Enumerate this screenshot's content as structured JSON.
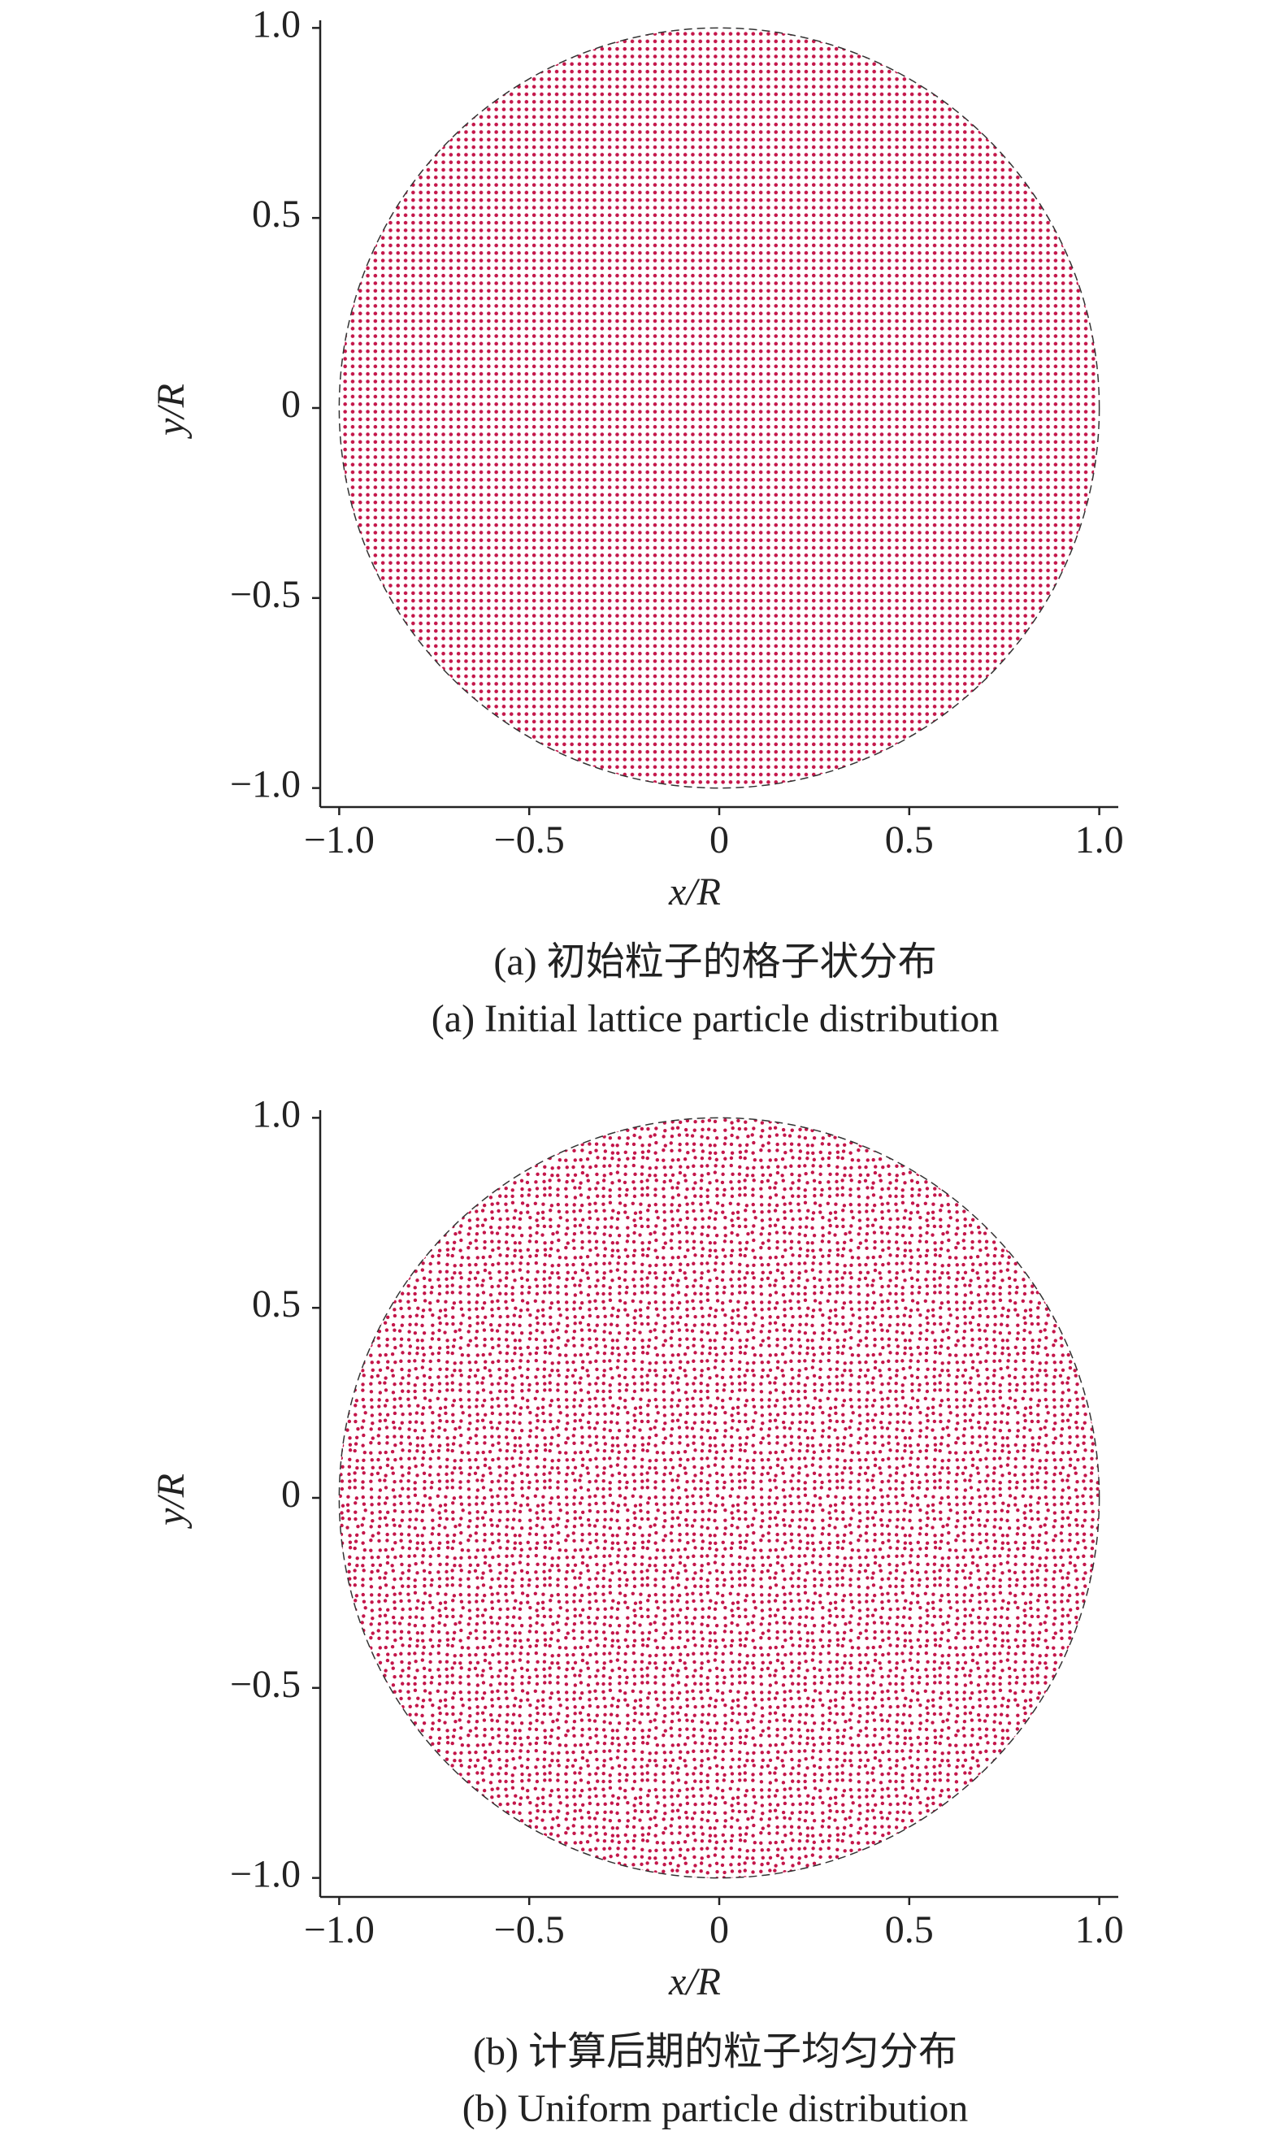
{
  "chart_data": [
    {
      "type": "scatter",
      "xlabel": "x/R",
      "ylabel": "y/R",
      "caption_zh": "(a) 初始粒子的格子状分布",
      "caption_en": "(a) Initial lattice particle distribution",
      "xlim": [
        -1.05,
        1.05
      ],
      "ylim": [
        -1.05,
        1.02
      ],
      "xticks": [
        {
          "value": -1,
          "label": "−1.0"
        },
        {
          "value": -0.5,
          "label": "−0.5"
        },
        0,
        0.5,
        {
          "value": 1,
          "label": "1.0"
        }
      ],
      "yticks": [
        {
          "value": -1,
          "label": "−1.0"
        },
        {
          "value": -0.5,
          "label": "−0.5"
        },
        0,
        0.5,
        {
          "value": 1,
          "label": "1.0"
        }
      ],
      "color": "#c4164a",
      "pattern": "lattice"
    },
    {
      "type": "scatter",
      "xlabel": "x/R",
      "ylabel": "y/R",
      "caption_zh": "(b) 计算后期的粒子均匀分布",
      "caption_en": "(b) Uniform particle distribution",
      "xlim": [
        -1.05,
        1.05
      ],
      "ylim": [
        -1.05,
        1.02
      ],
      "xticks": [
        {
          "value": -1,
          "label": "−1.0"
        },
        {
          "value": -0.5,
          "label": "−0.5"
        },
        0,
        0.5,
        {
          "value": 1,
          "label": "1.0"
        }
      ],
      "yticks": [
        {
          "value": -1,
          "label": "−1.0"
        },
        {
          "value": -0.5,
          "label": "−0.5"
        },
        0,
        0.5,
        {
          "value": 1,
          "label": "1.0"
        }
      ],
      "color": "#c4164a",
      "pattern": "uniform"
    }
  ]
}
